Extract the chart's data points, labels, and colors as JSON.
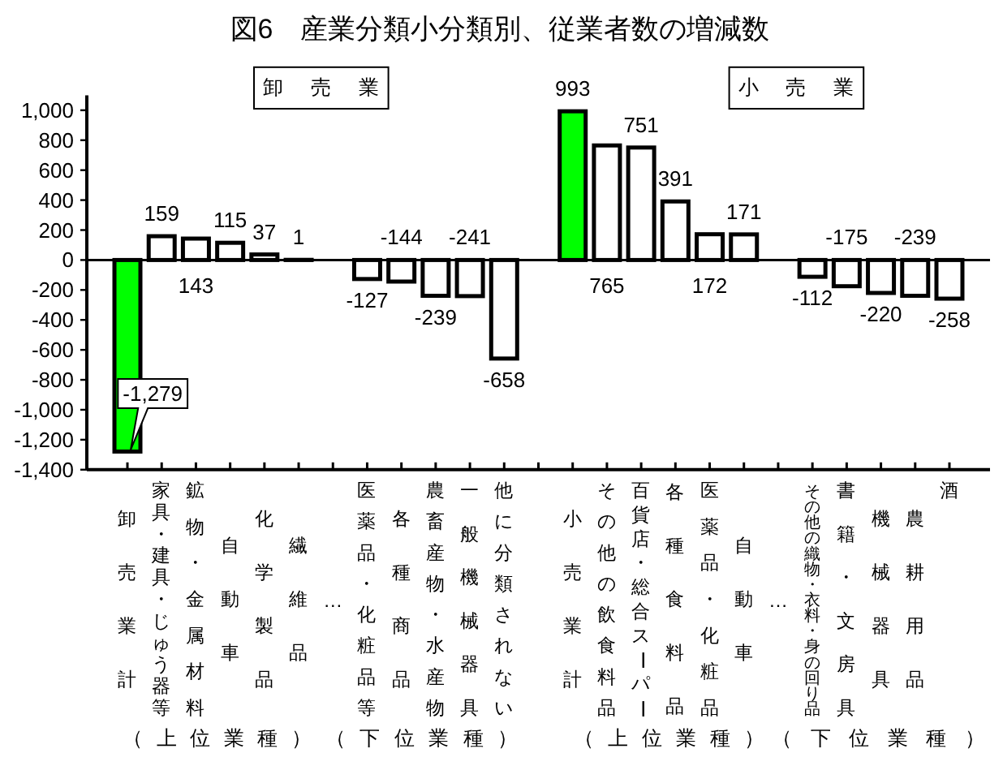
{
  "chart_data": {
    "type": "bar",
    "title": "図6　産業分類小分類別、従業者数の増減数",
    "categories": [
      "卸売業計",
      "家具・建具・じゅう器等",
      "鉱物・金属材料",
      "自動車",
      "化学製品",
      "繊維品",
      "…",
      "医薬品・化粧品等",
      "各種商品",
      "農畜産物・水産物",
      "一般機械器具",
      "他に分類されない",
      null,
      "小売業計",
      "その他の飲食料品",
      "百貨店・総合スーパー",
      "各種食料品",
      "医薬品・化粧品",
      "自動車",
      "…",
      "その他の織物・衣料・身の回り品",
      "書籍・文房具",
      "機械器具",
      "農耕用品",
      "酒"
    ],
    "values": [
      -1279,
      159,
      143,
      115,
      37,
      1,
      null,
      -127,
      -144,
      -239,
      -241,
      -658,
      null,
      993,
      765,
      751,
      391,
      172,
      171,
      null,
      -112,
      -175,
      -220,
      -239,
      -258
    ],
    "colors": [
      "#00ff00",
      "#ffffff",
      "#ffffff",
      "#ffffff",
      "#ffffff",
      "#ffffff",
      null,
      "#ffffff",
      "#ffffff",
      "#ffffff",
      "#ffffff",
      "#ffffff",
      null,
      "#00ff00",
      "#ffffff",
      "#ffffff",
      "#ffffff",
      "#ffffff",
      "#ffffff",
      null,
      "#ffffff",
      "#ffffff",
      "#ffffff",
      "#ffffff",
      "#ffffff"
    ],
    "value_labels": [
      "-1,279",
      "159",
      "143",
      "115",
      "37",
      "1",
      null,
      "-127",
      "-144",
      "-239",
      "-241",
      "-658",
      null,
      "993",
      "765",
      "751",
      "391",
      "172",
      "171",
      null,
      "-112",
      "-175",
      "-220",
      "-239",
      "-258"
    ],
    "ylim": [
      -1400,
      1100
    ],
    "yticks": [
      {
        "value": -1400,
        "label": "-1,400"
      },
      {
        "value": -1200,
        "label": "-1,200"
      },
      {
        "value": -1000,
        "label": "-1,000"
      },
      -800,
      -600,
      -400,
      -200,
      0,
      200,
      400,
      600,
      800,
      {
        "value": 1000,
        "label": "1,000"
      }
    ],
    "ref_lines": [
      {
        "axis": "y",
        "value": 0
      }
    ],
    "annotations": [
      "卸売業",
      "小売業",
      "（上位業種）",
      "（下位業種）",
      "（上位業種）",
      "（下位業種）"
    ]
  }
}
